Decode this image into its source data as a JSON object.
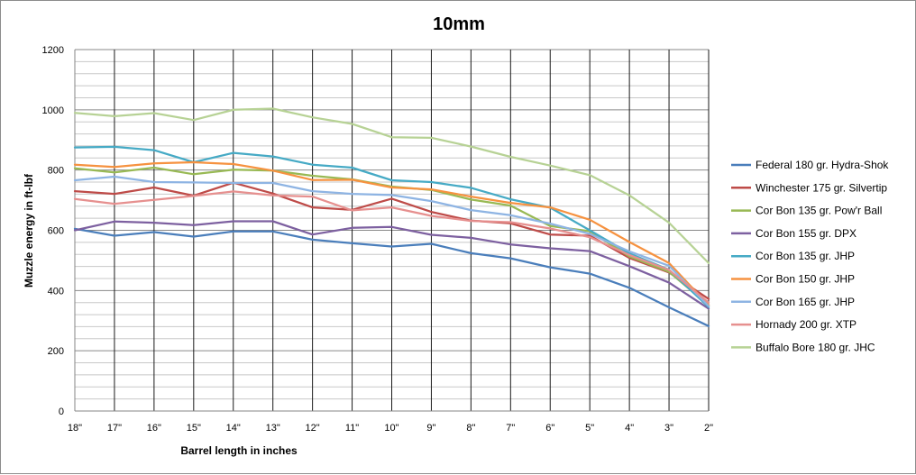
{
  "chart_data": {
    "type": "line",
    "title": "10mm",
    "xlabel": "Barrel length in inches",
    "ylabel": "Muzzle energy in ft-lbf",
    "ylim": [
      0,
      1200
    ],
    "yticks": [
      "0",
      "200",
      "400",
      "600",
      "800",
      "1000",
      "1200"
    ],
    "grid": true,
    "legend_position": "right",
    "categories": [
      "18\"",
      "17\"",
      "16\"",
      "15\"",
      "14\"",
      "13\"",
      "12\"",
      "11\"",
      "10\"",
      "9\"",
      "8\"",
      "7\"",
      "6\"",
      "5\"",
      "4\"",
      "3\"",
      "2\""
    ],
    "series": [
      {
        "name": "Federal 180 gr. Hydra-Shok",
        "color": "#4a7ebb",
        "values": [
          605,
          582,
          594,
          579,
          596,
          596,
          569,
          557,
          546,
          555,
          524,
          507,
          477,
          456,
          409,
          344,
          282
        ]
      },
      {
        "name": "Winchester 175 gr. Silvertip",
        "color": "#be4b48",
        "values": [
          730,
          721,
          742,
          715,
          758,
          722,
          676,
          668,
          705,
          661,
          632,
          623,
          586,
          582,
          508,
          460,
          372
        ]
      },
      {
        "name": "Cor Bon 135 gr. Pow'r Ball",
        "color": "#98b954",
        "values": [
          806,
          792,
          808,
          786,
          801,
          798,
          781,
          769,
          745,
          734,
          702,
          682,
          614,
          597,
          513,
          462,
          351
        ]
      },
      {
        "name": "Cor Bon 155 gr. DPX",
        "color": "#7d60a0",
        "values": [
          600,
          629,
          625,
          617,
          630,
          630,
          586,
          608,
          611,
          585,
          575,
          553,
          540,
          531,
          481,
          426,
          340
        ]
      },
      {
        "name": "Cor Bon 135 gr. JHP",
        "color": "#46aac5",
        "values": [
          875,
          877,
          866,
          826,
          857,
          845,
          818,
          808,
          766,
          760,
          741,
          703,
          675,
          600,
          523,
          469,
          345
        ]
      },
      {
        "name": "Cor Bon 150 gr. JHP",
        "color": "#f69240",
        "values": [
          818,
          810,
          822,
          826,
          820,
          798,
          767,
          768,
          742,
          736,
          712,
          691,
          676,
          635,
          561,
          491,
          351
        ]
      },
      {
        "name": "Cor Bon 165 gr. JHP",
        "color": "#8eb4e3",
        "values": [
          766,
          778,
          760,
          759,
          757,
          757,
          730,
          721,
          717,
          697,
          667,
          650,
          622,
          588,
          530,
          482,
          348
        ]
      },
      {
        "name": "Hornady 200 gr. XTP",
        "color": "#e6908f",
        "values": [
          704,
          688,
          701,
          714,
          729,
          716,
          712,
          666,
          676,
          648,
          631,
          627,
          606,
          577,
          518,
          468,
          360
        ]
      },
      {
        "name": "Buffalo Bore 180 gr. JHC",
        "color": "#b7d295",
        "values": [
          990,
          979,
          989,
          966,
          1000,
          1004,
          975,
          953,
          909,
          907,
          878,
          844,
          815,
          783,
          716,
          625,
          491
        ]
      }
    ]
  }
}
